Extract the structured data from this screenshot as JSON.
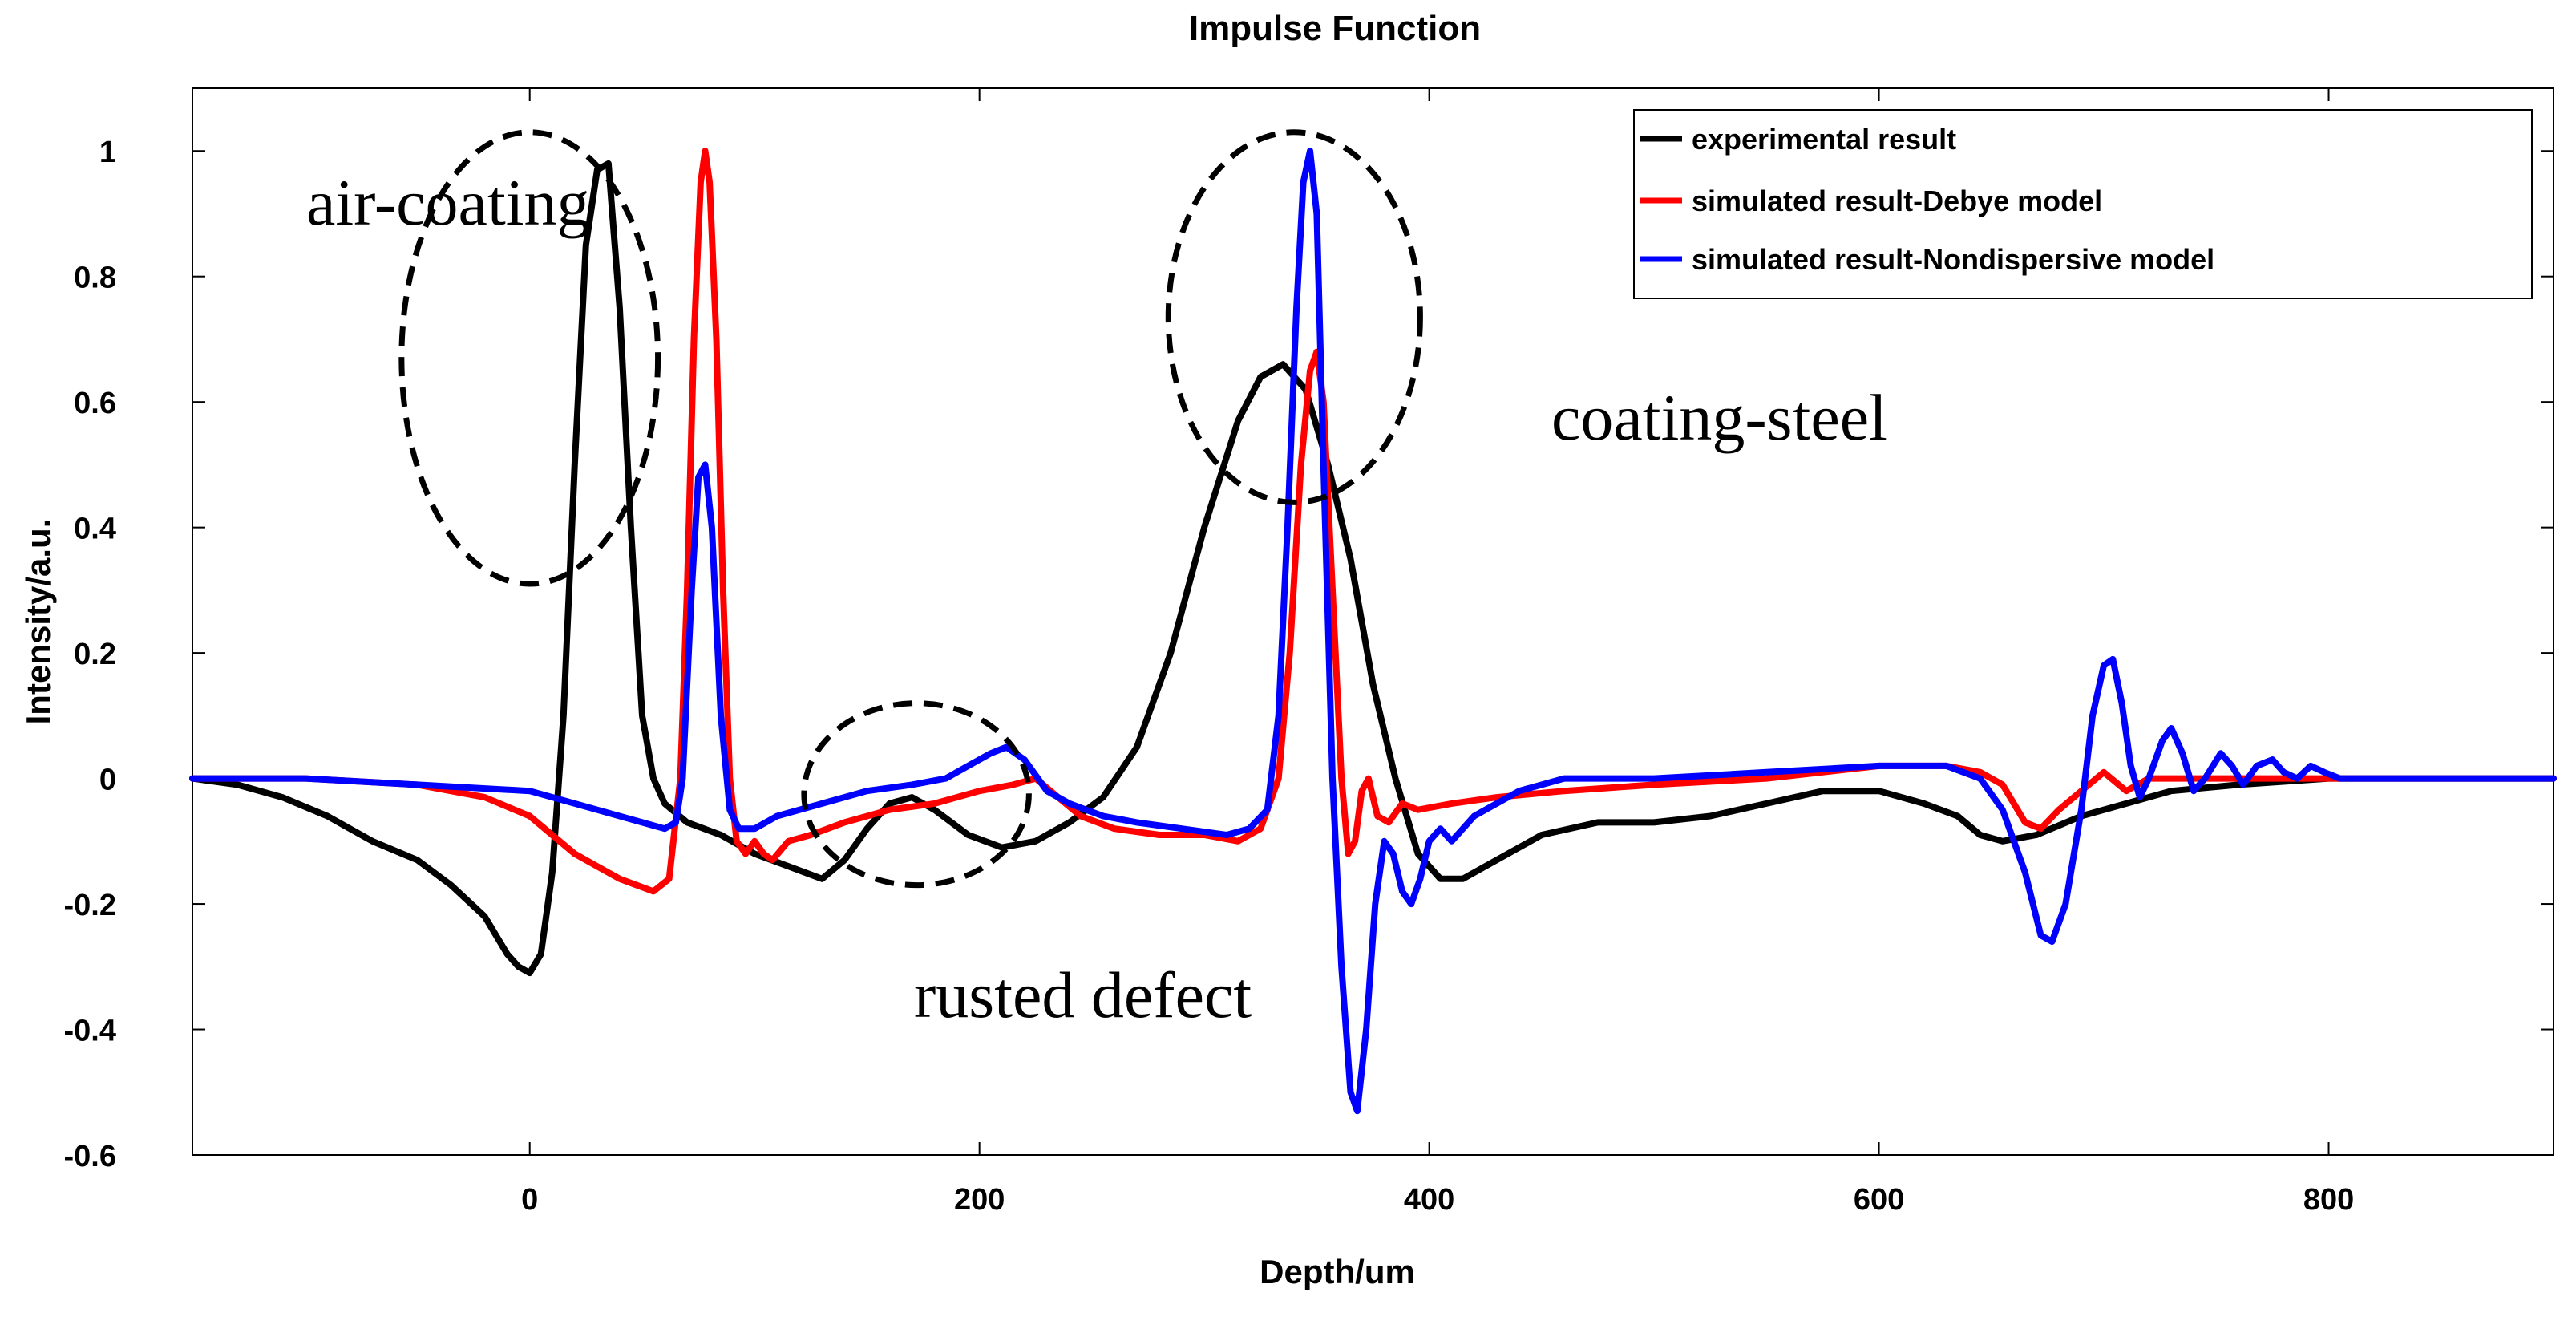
{
  "chart_data": {
    "type": "line",
    "title": "Impulse Function",
    "xlabel": "Depth/um",
    "ylabel": "Intensity/a.u.",
    "xlim": [
      -150,
      900
    ],
    "ylim": [
      -0.6,
      1.1
    ],
    "xticks": [
      0,
      200,
      400,
      600,
      800
    ],
    "yticks": [
      -0.6,
      -0.4,
      -0.2,
      0,
      0.2,
      0.4,
      0.6,
      0.8,
      1
    ],
    "xtick_labels": [
      "0",
      "200",
      "400",
      "600",
      "800"
    ],
    "ytick_labels": [
      "-0.6",
      "-0.4",
      "-0.2",
      "0",
      "0.2",
      "0.4",
      "0.6",
      "0.8",
      "1"
    ],
    "legend_position": "top-right",
    "series": [
      {
        "name": "experimental result",
        "color": "#000000",
        "points": [
          [
            -150,
            0
          ],
          [
            -130,
            -0.01
          ],
          [
            -110,
            -0.03
          ],
          [
            -90,
            -0.06
          ],
          [
            -70,
            -0.1
          ],
          [
            -50,
            -0.13
          ],
          [
            -35,
            -0.17
          ],
          [
            -20,
            -0.22
          ],
          [
            -10,
            -0.28
          ],
          [
            -5,
            -0.3
          ],
          [
            0,
            -0.31
          ],
          [
            5,
            -0.28
          ],
          [
            10,
            -0.15
          ],
          [
            15,
            0.1
          ],
          [
            20,
            0.5
          ],
          [
            25,
            0.85
          ],
          [
            30,
            0.97
          ],
          [
            35,
            0.98
          ],
          [
            40,
            0.75
          ],
          [
            45,
            0.4
          ],
          [
            50,
            0.1
          ],
          [
            55,
            0.0
          ],
          [
            60,
            -0.04
          ],
          [
            70,
            -0.07
          ],
          [
            85,
            -0.09
          ],
          [
            100,
            -0.12
          ],
          [
            115,
            -0.14
          ],
          [
            130,
            -0.16
          ],
          [
            140,
            -0.13
          ],
          [
            150,
            -0.08
          ],
          [
            160,
            -0.04
          ],
          [
            170,
            -0.03
          ],
          [
            180,
            -0.05
          ],
          [
            195,
            -0.09
          ],
          [
            210,
            -0.11
          ],
          [
            225,
            -0.1
          ],
          [
            240,
            -0.07
          ],
          [
            255,
            -0.03
          ],
          [
            270,
            0.05
          ],
          [
            285,
            0.2
          ],
          [
            300,
            0.4
          ],
          [
            315,
            0.57
          ],
          [
            325,
            0.64
          ],
          [
            335,
            0.66
          ],
          [
            345,
            0.62
          ],
          [
            355,
            0.5
          ],
          [
            365,
            0.35
          ],
          [
            375,
            0.15
          ],
          [
            385,
            0.0
          ],
          [
            395,
            -0.12
          ],
          [
            405,
            -0.16
          ],
          [
            415,
            -0.16
          ],
          [
            430,
            -0.13
          ],
          [
            450,
            -0.09
          ],
          [
            475,
            -0.07
          ],
          [
            500,
            -0.07
          ],
          [
            525,
            -0.06
          ],
          [
            550,
            -0.04
          ],
          [
            575,
            -0.02
          ],
          [
            600,
            -0.02
          ],
          [
            620,
            -0.04
          ],
          [
            635,
            -0.06
          ],
          [
            645,
            -0.09
          ],
          [
            655,
            -0.1
          ],
          [
            670,
            -0.09
          ],
          [
            690,
            -0.06
          ],
          [
            710,
            -0.04
          ],
          [
            730,
            -0.02
          ],
          [
            760,
            -0.01
          ],
          [
            800,
            0.0
          ],
          [
            850,
            0.0
          ],
          [
            900,
            0.0
          ]
        ]
      },
      {
        "name": "simulated result-Debye model",
        "color": "#ff0000",
        "points": [
          [
            -150,
            0.0
          ],
          [
            -100,
            0.0
          ],
          [
            -50,
            -0.01
          ],
          [
            -20,
            -0.03
          ],
          [
            0,
            -0.06
          ],
          [
            20,
            -0.12
          ],
          [
            40,
            -0.16
          ],
          [
            55,
            -0.18
          ],
          [
            62,
            -0.16
          ],
          [
            67,
            0.0
          ],
          [
            70,
            0.3
          ],
          [
            73,
            0.7
          ],
          [
            76,
            0.95
          ],
          [
            78,
            1.0
          ],
          [
            80,
            0.95
          ],
          [
            83,
            0.7
          ],
          [
            86,
            0.3
          ],
          [
            89,
            0.0
          ],
          [
            92,
            -0.1
          ],
          [
            96,
            -0.12
          ],
          [
            100,
            -0.1
          ],
          [
            104,
            -0.12
          ],
          [
            108,
            -0.13
          ],
          [
            115,
            -0.1
          ],
          [
            125,
            -0.09
          ],
          [
            140,
            -0.07
          ],
          [
            160,
            -0.05
          ],
          [
            180,
            -0.04
          ],
          [
            200,
            -0.02
          ],
          [
            215,
            -0.01
          ],
          [
            225,
            0.0
          ],
          [
            235,
            -0.03
          ],
          [
            245,
            -0.06
          ],
          [
            260,
            -0.08
          ],
          [
            280,
            -0.09
          ],
          [
            300,
            -0.09
          ],
          [
            315,
            -0.1
          ],
          [
            325,
            -0.08
          ],
          [
            333,
            0.0
          ],
          [
            338,
            0.2
          ],
          [
            343,
            0.5
          ],
          [
            347,
            0.65
          ],
          [
            350,
            0.68
          ],
          [
            353,
            0.6
          ],
          [
            357,
            0.3
          ],
          [
            361,
            0.0
          ],
          [
            364,
            -0.12
          ],
          [
            367,
            -0.1
          ],
          [
            370,
            -0.02
          ],
          [
            373,
            0.0
          ],
          [
            377,
            -0.06
          ],
          [
            382,
            -0.07
          ],
          [
            388,
            -0.04
          ],
          [
            395,
            -0.05
          ],
          [
            410,
            -0.04
          ],
          [
            430,
            -0.03
          ],
          [
            460,
            -0.02
          ],
          [
            500,
            -0.01
          ],
          [
            550,
            0.0
          ],
          [
            600,
            0.02
          ],
          [
            630,
            0.02
          ],
          [
            645,
            0.01
          ],
          [
            655,
            -0.01
          ],
          [
            665,
            -0.07
          ],
          [
            672,
            -0.08
          ],
          [
            680,
            -0.05
          ],
          [
            690,
            -0.02
          ],
          [
            700,
            0.01
          ],
          [
            710,
            -0.02
          ],
          [
            720,
            0.0
          ],
          [
            750,
            0.0
          ],
          [
            800,
            0.0
          ],
          [
            850,
            0.0
          ],
          [
            900,
            0.0
          ]
        ]
      },
      {
        "name": "simulated result-Nondispersive model",
        "color": "#0000ff",
        "points": [
          [
            -150,
            0.0
          ],
          [
            -100,
            0.0
          ],
          [
            -50,
            -0.01
          ],
          [
            0,
            -0.02
          ],
          [
            30,
            -0.05
          ],
          [
            50,
            -0.07
          ],
          [
            60,
            -0.08
          ],
          [
            65,
            -0.07
          ],
          [
            68,
            0.0
          ],
          [
            72,
            0.3
          ],
          [
            75,
            0.48
          ],
          [
            78,
            0.5
          ],
          [
            81,
            0.4
          ],
          [
            85,
            0.1
          ],
          [
            89,
            -0.05
          ],
          [
            93,
            -0.08
          ],
          [
            100,
            -0.08
          ],
          [
            110,
            -0.06
          ],
          [
            130,
            -0.04
          ],
          [
            150,
            -0.02
          ],
          [
            170,
            -0.01
          ],
          [
            185,
            0.0
          ],
          [
            195,
            0.02
          ],
          [
            205,
            0.04
          ],
          [
            212,
            0.05
          ],
          [
            220,
            0.03
          ],
          [
            230,
            -0.02
          ],
          [
            240,
            -0.04
          ],
          [
            255,
            -0.06
          ],
          [
            270,
            -0.07
          ],
          [
            290,
            -0.08
          ],
          [
            310,
            -0.09
          ],
          [
            320,
            -0.08
          ],
          [
            328,
            -0.05
          ],
          [
            333,
            0.1
          ],
          [
            337,
            0.4
          ],
          [
            341,
            0.75
          ],
          [
            344,
            0.95
          ],
          [
            347,
            1.0
          ],
          [
            350,
            0.9
          ],
          [
            353,
            0.5
          ],
          [
            357,
            0.0
          ],
          [
            361,
            -0.3
          ],
          [
            365,
            -0.5
          ],
          [
            368,
            -0.53
          ],
          [
            372,
            -0.4
          ],
          [
            376,
            -0.2
          ],
          [
            380,
            -0.1
          ],
          [
            384,
            -0.12
          ],
          [
            388,
            -0.18
          ],
          [
            392,
            -0.2
          ],
          [
            396,
            -0.16
          ],
          [
            400,
            -0.1
          ],
          [
            405,
            -0.08
          ],
          [
            410,
            -0.1
          ],
          [
            420,
            -0.06
          ],
          [
            440,
            -0.02
          ],
          [
            460,
            0.0
          ],
          [
            500,
            0.0
          ],
          [
            550,
            0.01
          ],
          [
            600,
            0.02
          ],
          [
            630,
            0.02
          ],
          [
            645,
            0.0
          ],
          [
            655,
            -0.05
          ],
          [
            665,
            -0.15
          ],
          [
            672,
            -0.25
          ],
          [
            677,
            -0.26
          ],
          [
            683,
            -0.2
          ],
          [
            690,
            -0.05
          ],
          [
            695,
            0.1
          ],
          [
            700,
            0.18
          ],
          [
            704,
            0.19
          ],
          [
            708,
            0.12
          ],
          [
            712,
            0.02
          ],
          [
            716,
            -0.03
          ],
          [
            720,
            0.0
          ],
          [
            726,
            0.06
          ],
          [
            730,
            0.08
          ],
          [
            735,
            0.04
          ],
          [
            740,
            -0.02
          ],
          [
            745,
            0.0
          ],
          [
            752,
            0.04
          ],
          [
            757,
            0.02
          ],
          [
            762,
            -0.01
          ],
          [
            768,
            0.02
          ],
          [
            775,
            0.03
          ],
          [
            780,
            0.01
          ],
          [
            786,
            0.0
          ],
          [
            792,
            0.02
          ],
          [
            798,
            0.01
          ],
          [
            805,
            0.0
          ],
          [
            820,
            0.0
          ],
          [
            850,
            0.0
          ],
          [
            900,
            0.0
          ]
        ]
      }
    ],
    "annotations": [
      {
        "label": "air-coating",
        "cx": 0,
        "cy": 0.67,
        "rx": 57,
        "ry": 0.36
      },
      {
        "label": "coating-steel",
        "cx": 340,
        "cy": 0.735,
        "rx": 56,
        "ry": 0.295
      },
      {
        "label": "rusted defect",
        "cx": 172,
        "cy": -0.025,
        "rx": 50,
        "ry": 0.145
      }
    ]
  }
}
